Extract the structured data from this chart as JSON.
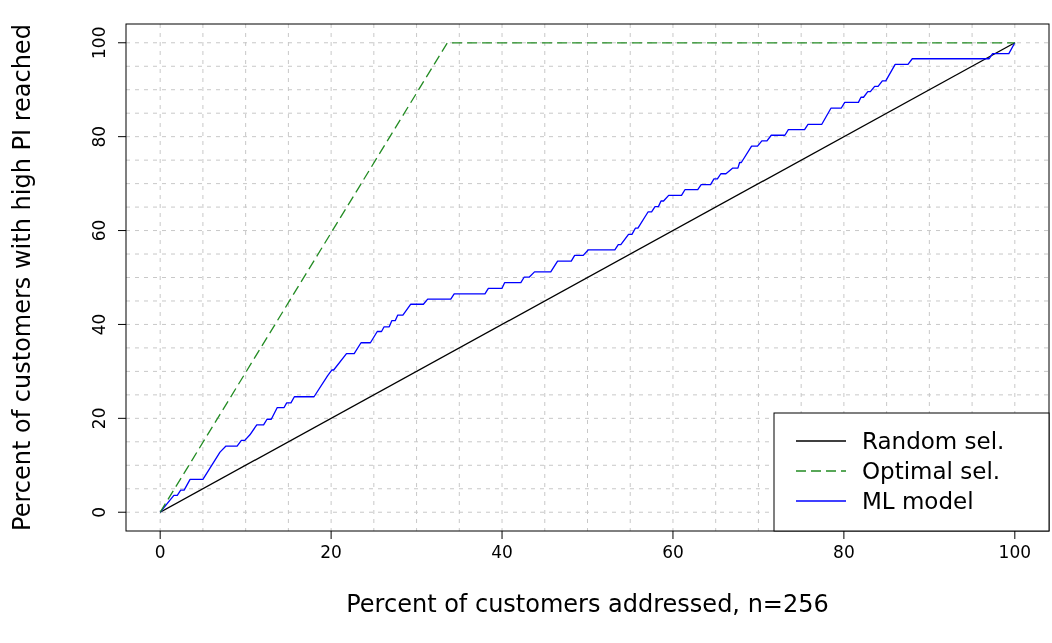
{
  "chart_data": {
    "type": "line",
    "xlabel": "Percent of customers addressed, n=256",
    "ylabel": "Percent of customers with high PI reached",
    "xlim": [
      -4,
      104
    ],
    "ylim": [
      -4,
      104
    ],
    "xticks": [
      0,
      {
        "value": 5,
        "label": null
      },
      {
        "value": 10,
        "label": null
      },
      {
        "value": 15,
        "label": null
      },
      20,
      {
        "value": 25,
        "label": null
      },
      {
        "value": 30,
        "label": null
      },
      {
        "value": 35,
        "label": null
      },
      40,
      {
        "value": 45,
        "label": null
      },
      {
        "value": 50,
        "label": null
      },
      {
        "value": 55,
        "label": null
      },
      60,
      {
        "value": 65,
        "label": null
      },
      {
        "value": 70,
        "label": null
      },
      {
        "value": 75,
        "label": null
      },
      80,
      {
        "value": 85,
        "label": null
      },
      {
        "value": 90,
        "label": null
      },
      {
        "value": 95,
        "label": null
      },
      100
    ],
    "yticks": [
      0,
      {
        "value": 5,
        "label": null
      },
      {
        "value": 10,
        "label": null
      },
      {
        "value": 15,
        "label": null
      },
      20,
      {
        "value": 25,
        "label": null
      },
      {
        "value": 30,
        "label": null
      },
      {
        "value": 35,
        "label": null
      },
      40,
      {
        "value": 45,
        "label": null
      },
      {
        "value": 50,
        "label": null
      },
      {
        "value": 55,
        "label": null
      },
      60,
      {
        "value": 65,
        "label": null
      },
      {
        "value": 70,
        "label": null
      },
      {
        "value": 75,
        "label": null
      },
      80,
      {
        "value": 85,
        "label": null
      },
      {
        "value": 90,
        "label": null
      },
      {
        "value": 95,
        "label": null
      },
      100
    ],
    "grid": true,
    "legend": "bottom right",
    "series": [
      {
        "name": "Random sel.",
        "color": "#000000",
        "line_style": "solid",
        "x": [
          0,
          100
        ],
        "values": [
          0,
          100
        ]
      },
      {
        "name": "Optimal sel.",
        "color": "#228b22",
        "line_style": "dashed",
        "x": [
          0,
          33.6,
          100
        ],
        "values": [
          0,
          100,
          100
        ]
      },
      {
        "name": "ML model",
        "color": "#0000ff",
        "line_style": "solid",
        "x": [
          0,
          1.6,
          2.0,
          2.4,
          2.8,
          3.5,
          5.0,
          7.0,
          7.7,
          9.0,
          9.5,
          9.9,
          10.5,
          11.3,
          12.1,
          12.5,
          13.0,
          13.7,
          14.5,
          14.8,
          15.3,
          15.7,
          18.0,
          19.6,
          20.1,
          20.3,
          21.8,
          22.7,
          23.5,
          24.6,
          25.4,
          25.9,
          26.2,
          26.8,
          27.1,
          27.5,
          27.8,
          28.4,
          29.3,
          30.8,
          31.3,
          34.0,
          34.4,
          38.0,
          38.4,
          40.0,
          40.3,
          42.2,
          42.6,
          43.2,
          43.8,
          45.7,
          46.5,
          48.1,
          48.5,
          49.5,
          50.1,
          53.2,
          53.6,
          53.9,
          54.8,
          55.2,
          55.6,
          55.9,
          57.1,
          57.5,
          57.9,
          58.3,
          58.6,
          58.9,
          59.5,
          61.0,
          61.4,
          62.9,
          63.3,
          64.4,
          64.8,
          65.2,
          65.6,
          66.2,
          67.0,
          67.6,
          67.8,
          68.0,
          69.2,
          69.9,
          70.4,
          71.0,
          71.5,
          73.1,
          73.5,
          75.4,
          75.8,
          77.4,
          78.5,
          79.7,
          80.1,
          81.7,
          82.0,
          82.3,
          82.8,
          83.1,
          83.6,
          84.0,
          84.5,
          84.9,
          86.0,
          87.5,
          88.0,
          97.0,
          97.4,
          99.3,
          100
        ],
        "values": [
          0,
          3.6,
          3.6,
          4.7,
          4.7,
          7.0,
          7.0,
          12.8,
          14.1,
          14.1,
          15.3,
          15.3,
          16.5,
          18.6,
          18.6,
          19.8,
          19.8,
          22.3,
          22.3,
          23.3,
          23.3,
          24.6,
          24.6,
          29.1,
          30.3,
          30.3,
          33.8,
          33.8,
          36.1,
          36.1,
          38.5,
          38.5,
          39.5,
          39.5,
          40.8,
          40.8,
          42.0,
          42.0,
          44.3,
          44.3,
          45.4,
          45.4,
          46.5,
          46.5,
          47.7,
          47.7,
          48.9,
          48.9,
          50.1,
          50.1,
          51.2,
          51.2,
          53.5,
          53.5,
          54.7,
          54.7,
          55.9,
          55.9,
          57.0,
          57.0,
          59.2,
          59.2,
          60.5,
          60.5,
          64.0,
          64.0,
          65.1,
          65.1,
          66.3,
          66.3,
          67.5,
          67.5,
          68.7,
          68.7,
          69.8,
          69.8,
          71.0,
          71.0,
          72.1,
          72.1,
          73.3,
          73.3,
          74.5,
          74.5,
          78.0,
          78.0,
          79.1,
          79.1,
          80.3,
          80.3,
          81.5,
          81.5,
          82.6,
          82.6,
          86.1,
          86.1,
          87.3,
          87.3,
          88.4,
          88.4,
          89.6,
          89.6,
          90.7,
          90.7,
          91.9,
          91.9,
          95.4,
          95.4,
          96.6,
          96.6,
          97.7,
          97.7,
          100
        ]
      }
    ]
  }
}
